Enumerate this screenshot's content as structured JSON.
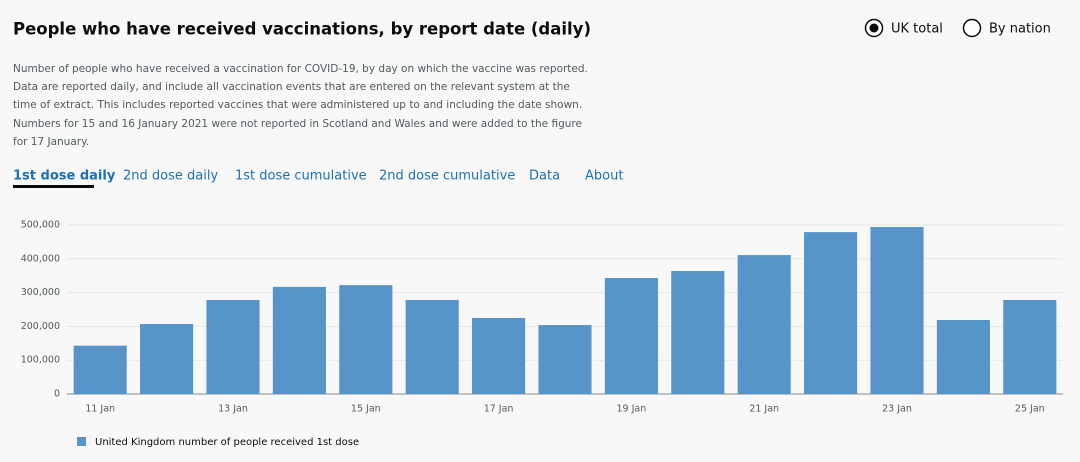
{
  "options": [
    "UK total",
    "By nation"
  ],
  "description": [
    "Number of people who have received a vaccination for COVID-19, by day on which the vaccine was reported.",
    "Data are reported daily, and include all vaccination events that are entered on the relevant system at the",
    "time of extract. This includes reported vaccines that were administered up to and including the date shown.",
    "Numbers for 15 and 16 January 2021 were not reported in Scotland and Wales and were added to the figure",
    "for 17 January."
  ],
  "tabs": [
    "1st dose daily",
    "2nd dose daily",
    "1st dose cumulative",
    "2nd dose cumulative",
    "Data",
    "About"
  ],
  "chart_data": {
    "type": "bar",
    "title": "People who have received vaccinations, by report date (daily)",
    "categories": [
      "11 Jan",
      null,
      "13 Jan",
      null,
      "15 Jan",
      null,
      "17 Jan",
      null,
      "19 Jan",
      null,
      "21 Jan",
      null,
      "23 Jan",
      null,
      "25 Jan"
    ],
    "series": [
      {
        "name": "United Kingdom number of people received 1st dose",
        "color": "#5694ca",
        "values": [
          143000,
          207000,
          278000,
          317000,
          322000,
          278000,
          225000,
          204000,
          343000,
          364000,
          411000,
          479000,
          494000,
          219000,
          278000
        ]
      }
    ],
    "ylim": [
      0,
      500000
    ],
    "yticks": [
      0,
      {
        "value": 100000,
        "label": "100,000"
      },
      {
        "value": 200000,
        "label": "200,000"
      },
      {
        "value": 300000,
        "label": "300,000"
      },
      {
        "value": 400000,
        "label": "400,000"
      },
      {
        "value": 500000,
        "label": "500,000"
      }
    ],
    "grid": true
  }
}
